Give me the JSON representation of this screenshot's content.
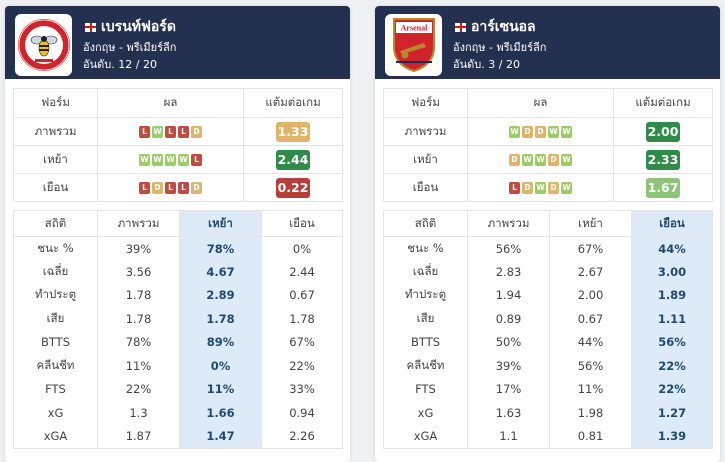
{
  "teams": [
    {
      "name": "เบรนท์ฟอร์ด",
      "league": "อังกฤษ - พรีเมียร์ลีก",
      "rank": "อันดับ. 12 / 20",
      "logo": "brentford-bee-crest",
      "form_headers": [
        "ฟอร์ม",
        "ผล",
        "แต้มต่อเกม"
      ],
      "form_rows": [
        {
          "label": "ภาพรวม",
          "results": [
            "L",
            "W",
            "L",
            "L",
            "D"
          ],
          "ppg": "1.33",
          "ppg_color": "#dfb56a"
        },
        {
          "label": "เหย้า",
          "results": [
            "W",
            "W",
            "W",
            "W",
            "L"
          ],
          "ppg": "2.44",
          "ppg_color": "#2e8b48"
        },
        {
          "label": "เยือน",
          "results": [
            "L",
            "D",
            "L",
            "L",
            "D"
          ],
          "ppg": "0.22",
          "ppg_color": "#b5403a"
        }
      ],
      "stats_headers": [
        "สถิติ",
        "ภาพรวม",
        "เหย้า",
        "เยือน"
      ],
      "highlight_col": 2,
      "stats_rows": [
        [
          "ชนะ %",
          "39%",
          "78%",
          "0%"
        ],
        [
          "เฉลี่ย",
          "3.56",
          "4.67",
          "2.44"
        ],
        [
          "ทำประตู",
          "1.78",
          "2.89",
          "0.67"
        ],
        [
          "เสีย",
          "1.78",
          "1.78",
          "1.78"
        ],
        [
          "BTTS",
          "78%",
          "89%",
          "67%"
        ],
        [
          "คลีนชีท",
          "11%",
          "0%",
          "22%"
        ],
        [
          "FTS",
          "22%",
          "11%",
          "33%"
        ],
        [
          "xG",
          "1.3",
          "1.66",
          "0.94"
        ],
        [
          "xGA",
          "1.87",
          "1.47",
          "2.26"
        ]
      ]
    },
    {
      "name": "อาร์เซนอล",
      "league": "อังกฤษ - พรีเมียร์ลีก",
      "rank": "อันดับ. 3 / 20",
      "logo": "arsenal-cannon-crest",
      "form_headers": [
        "ฟอร์ม",
        "ผล",
        "แต้มต่อเกม"
      ],
      "form_rows": [
        {
          "label": "ภาพรวม",
          "results": [
            "W",
            "D",
            "D",
            "W",
            "W"
          ],
          "ppg": "2.00",
          "ppg_color": "#2e8b48"
        },
        {
          "label": "เหย้า",
          "results": [
            "D",
            "W",
            "W",
            "D",
            "W"
          ],
          "ppg": "2.33",
          "ppg_color": "#2e8b48"
        },
        {
          "label": "เยือน",
          "results": [
            "L",
            "D",
            "W",
            "D",
            "W"
          ],
          "ppg": "1.67",
          "ppg_color": "#8cc47a"
        }
      ],
      "stats_headers": [
        "สถิติ",
        "ภาพรวม",
        "เหย้า",
        "เยือน"
      ],
      "highlight_col": 3,
      "stats_rows": [
        [
          "ชนะ %",
          "56%",
          "67%",
          "44%"
        ],
        [
          "เฉลี่ย",
          "2.83",
          "2.67",
          "3.00"
        ],
        [
          "ทำประตู",
          "1.94",
          "2.00",
          "1.89"
        ],
        [
          "เสีย",
          "0.89",
          "0.67",
          "1.11"
        ],
        [
          "BTTS",
          "50%",
          "44%",
          "56%"
        ],
        [
          "คลีนชีท",
          "39%",
          "56%",
          "22%"
        ],
        [
          "FTS",
          "17%",
          "11%",
          "22%"
        ],
        [
          "xG",
          "1.63",
          "1.98",
          "1.27"
        ],
        [
          "xGA",
          "1.1",
          "0.81",
          "1.39"
        ]
      ]
    }
  ]
}
